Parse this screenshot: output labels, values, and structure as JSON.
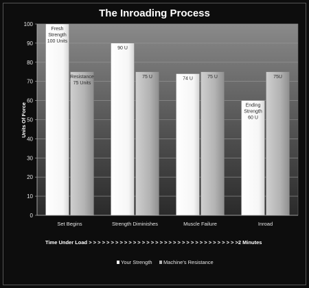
{
  "chart_data": {
    "type": "bar",
    "title": "The Inroading Process",
    "ylabel": "Units Of Force",
    "ylim": [
      0,
      100
    ],
    "yticks": [
      0,
      10,
      20,
      30,
      40,
      50,
      60,
      70,
      80,
      90,
      100
    ],
    "categories": [
      "Set Begins",
      "Strength Diminishes",
      "Muscle Failure",
      "Inroad"
    ],
    "series": [
      {
        "name": "Your Strength",
        "color": "#f2f2f2",
        "values": [
          100,
          90,
          74,
          60
        ],
        "labels": [
          [
            "Fresh",
            "Strength",
            "100 Units"
          ],
          [
            "90 U"
          ],
          [
            "74 U"
          ],
          [
            "Ending",
            "Strength",
            "60 U"
          ]
        ]
      },
      {
        "name": "Machine's Resistance",
        "color": "#b3b3b3",
        "values": [
          75,
          75,
          75,
          75
        ],
        "labels": [
          [
            "Resistance",
            "75 Units"
          ],
          [
            "75 U"
          ],
          [
            "75 U"
          ],
          [
            "75U"
          ]
        ]
      }
    ],
    "grid": true,
    "legend_position": "bottom",
    "annotation": "Time Under Load > > > > > > > > > > > > > > > > > > > > > > > > > > > > > > > > > >2 Minutes"
  }
}
